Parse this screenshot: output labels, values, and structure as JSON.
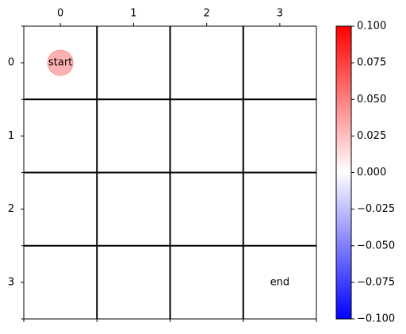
{
  "chart_data": {
    "type": "heatmap",
    "title": "",
    "xlabel": "",
    "ylabel": "",
    "x_ticks": [
      "0",
      "1",
      "2",
      "3"
    ],
    "y_ticks": [
      "0",
      "1",
      "2",
      "3"
    ],
    "x_tick_position": "top",
    "grid_size": [
      4,
      4
    ],
    "values": [
      [
        0,
        0,
        0,
        0
      ],
      [
        0,
        0,
        0,
        0
      ],
      [
        0,
        0,
        0,
        0
      ],
      [
        0,
        0,
        0,
        0
      ]
    ],
    "markers": [
      {
        "label": "start",
        "row": 0,
        "col": 0,
        "shape": "circle",
        "color": "#ff7f7f"
      },
      {
        "label": "end",
        "row": 3,
        "col": 3,
        "shape": "none",
        "color": ""
      }
    ],
    "colorbar": {
      "colormap": "bwr",
      "vmin": -0.1,
      "vmax": 0.1,
      "ticks": [
        "0.100",
        "0.075",
        "0.050",
        "0.025",
        "0.000",
        "−0.025",
        "−0.050",
        "−0.075",
        "−0.100"
      ],
      "tick_values": [
        0.1,
        0.075,
        0.05,
        0.025,
        0.0,
        -0.025,
        -0.05,
        -0.075,
        -0.1
      ],
      "colors": {
        "low": "#0000ff",
        "mid": "#ffffff",
        "high": "#ff0000"
      },
      "placement": "right"
    },
    "grid": true
  }
}
